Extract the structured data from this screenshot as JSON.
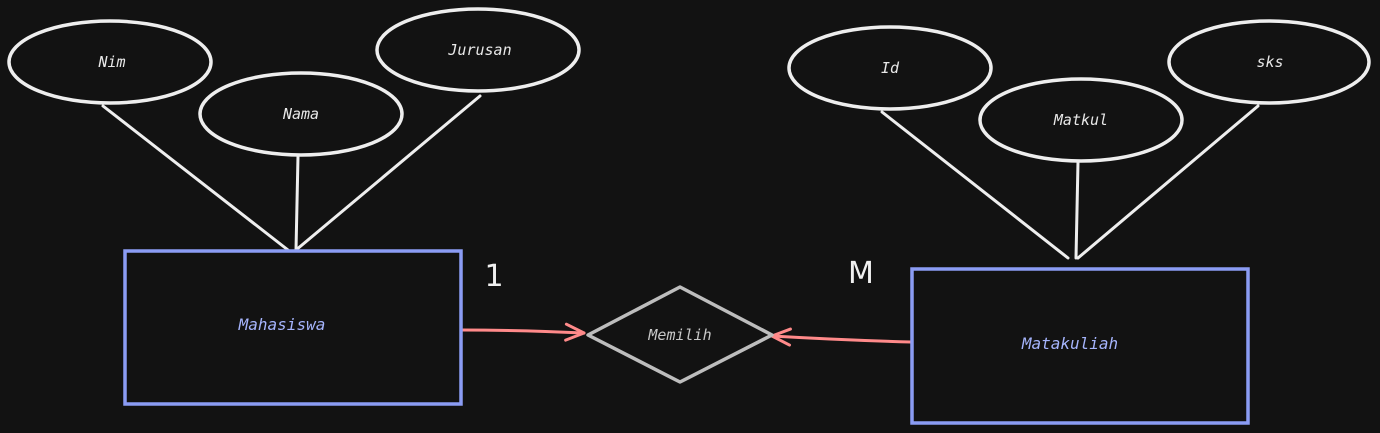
{
  "colors": {
    "background": "#121212",
    "attribute_stroke": "#eeeeee",
    "entity_stroke": "#8b9cf4",
    "entity_text": "#a5b4fc",
    "relationship_stroke": "#bdbdbd",
    "relationship_text": "#c8c8c8",
    "connector": "#ff8a8a"
  },
  "entities": {
    "mahasiswa": {
      "label": "Mahasiswa"
    },
    "matakuliah": {
      "label": "Matakuliah"
    }
  },
  "relationship": {
    "label": "Memilih"
  },
  "cardinality": {
    "left": "1",
    "right": "M"
  },
  "attributes": {
    "mahasiswa": [
      {
        "label": "Nim"
      },
      {
        "label": "Nama"
      },
      {
        "label": "Jurusan"
      }
    ],
    "matakuliah": [
      {
        "label": "Id"
      },
      {
        "label": "Matkul"
      },
      {
        "label": "sks"
      }
    ]
  }
}
